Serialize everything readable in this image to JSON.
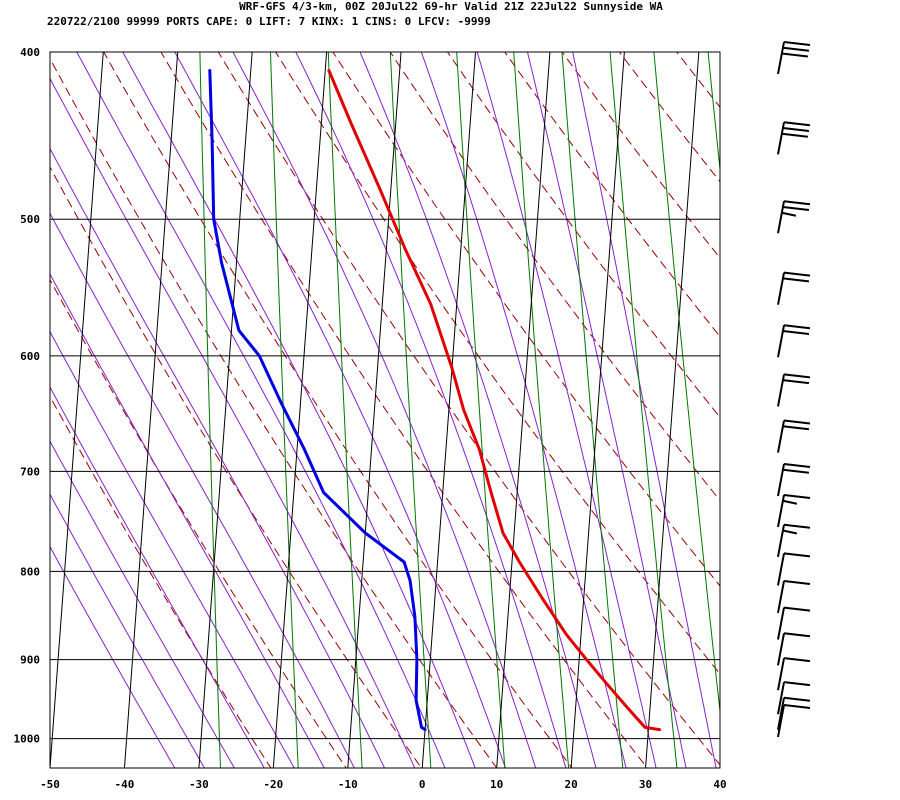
{
  "header": {
    "title_line": "WRF-GFS 4/3-km, 00Z 20Jul22 69-hr Valid 21Z 22Jul22 Sunnyside WA",
    "index_line": "220722/2100 99999  PORTS   CAPE:     0 LIFT:     7 KINX:     1 CINS:     0 LFCV: -9999"
  },
  "colors": {
    "temperature": "#e00000",
    "dewpoint": "#0000e0",
    "isotherm_grid": "#000000",
    "dry_adiabat": "#990000",
    "moist_adiabat": "#8822cc",
    "mixing_ratio": "#007700",
    "wind_barb": "#000000"
  },
  "chart_data": {
    "type": "line",
    "diagram": "skew-T log-p",
    "x_axis": {
      "min": -50,
      "max": 40,
      "ticks": [
        "-50",
        "-40",
        "-30",
        "-20",
        "-10",
        "0",
        "10",
        "20",
        "30",
        "40"
      ],
      "unit": ""
    },
    "y_axis": {
      "scale": "log",
      "top": 400,
      "bottom": 1040,
      "ticks": [
        "400",
        "500",
        "600",
        "700",
        "800",
        "900",
        "1000"
      ],
      "unit": ""
    },
    "grid": true,
    "series": [
      {
        "role": "temperature",
        "points": [
          [
            988,
            31.5
          ],
          [
            985,
            29.5
          ],
          [
            960,
            27
          ],
          [
            930,
            24
          ],
          [
            900,
            21
          ],
          [
            870,
            18
          ],
          [
            830,
            14.5
          ],
          [
            790,
            11
          ],
          [
            760,
            8.5
          ],
          [
            720,
            6.5
          ],
          [
            680,
            4.5
          ],
          [
            645,
            2
          ],
          [
            610,
            0
          ],
          [
            560,
            -3.5
          ],
          [
            520,
            -7.5
          ],
          [
            480,
            -11.5
          ],
          [
            440,
            -16
          ],
          [
            410,
            -19.5
          ]
        ]
      },
      {
        "role": "dewpoint",
        "points": [
          [
            988,
            0
          ],
          [
            985,
            -0.5
          ],
          [
            950,
            -1.5
          ],
          [
            900,
            -1.8
          ],
          [
            850,
            -2.5
          ],
          [
            810,
            -3.5
          ],
          [
            790,
            -4.5
          ],
          [
            760,
            -10
          ],
          [
            720,
            -16
          ],
          [
            680,
            -19
          ],
          [
            640,
            -22.5
          ],
          [
            600,
            -26
          ],
          [
            580,
            -29
          ],
          [
            530,
            -32
          ],
          [
            500,
            -33.5
          ],
          [
            450,
            -34.5
          ],
          [
            410,
            -35.5
          ]
        ]
      }
    ],
    "wind_barbs": [
      {
        "p": 400,
        "speed_kt": 30
      },
      {
        "p": 450,
        "speed_kt": 30
      },
      {
        "p": 500,
        "speed_kt": 25
      },
      {
        "p": 550,
        "speed_kt": 20
      },
      {
        "p": 590,
        "speed_kt": 20
      },
      {
        "p": 630,
        "speed_kt": 20
      },
      {
        "p": 670,
        "speed_kt": 20
      },
      {
        "p": 710,
        "speed_kt": 20
      },
      {
        "p": 740,
        "speed_kt": 15
      },
      {
        "p": 770,
        "speed_kt": 15
      },
      {
        "p": 800,
        "speed_kt": 10
      },
      {
        "p": 830,
        "speed_kt": 10
      },
      {
        "p": 860,
        "speed_kt": 10
      },
      {
        "p": 890,
        "speed_kt": 10
      },
      {
        "p": 920,
        "speed_kt": 10
      },
      {
        "p": 950,
        "speed_kt": 10
      },
      {
        "p": 970,
        "speed_kt": 10
      },
      {
        "p": 990,
        "speed_kt": 10
      }
    ]
  }
}
